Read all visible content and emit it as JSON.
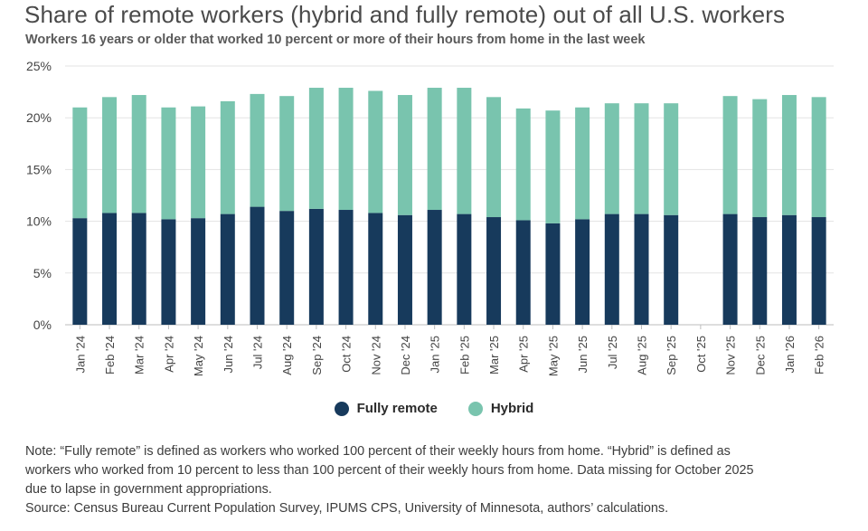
{
  "title": "Share of remote workers (hybrid and fully remote) out of all U.S. workers",
  "subtitle": "Workers 16 years or older that worked 10 percent or more of their hours from home in the last week",
  "legend": {
    "fully_remote": "Fully remote",
    "hybrid": "Hybrid"
  },
  "colors": {
    "fully_remote": "#173a5c",
    "hybrid": "#79c4ae",
    "grid": "#e3e3e3",
    "axis": "#bdbdbd",
    "tick_text": "#444444"
  },
  "note": {
    "line1": "Note: “Fully remote” is defined as workers who worked 100 percent of their weekly hours from home. “Hybrid” is defined as",
    "line2": "workers who worked from 10 percent to less than 100 percent of their weekly hours from home. Data missing for October 2025",
    "line3": "due to lapse in government appropriations.",
    "source": "Source: Census Bureau Current Population Survey, IPUMS CPS, University of Minnesota, authors’ calculations."
  },
  "chart_data": {
    "type": "bar",
    "stacked": true,
    "categories": [
      "Jan '24",
      "Feb '24",
      "Mar '24",
      "Apr '24",
      "May '24",
      "Jun '24",
      "Jul '24",
      "Aug '24",
      "Sep '24",
      "Oct '24",
      "Nov '24",
      "Dec '24",
      "Jan '25",
      "Feb '25",
      "Mar '25",
      "Apr '25",
      "May '25",
      "Jun '25",
      "Jul '25",
      "Aug '25",
      "Sep '25",
      "Oct '25",
      "Nov '25",
      "Dec '25",
      "Jan '26",
      "Feb '26"
    ],
    "series": [
      {
        "name": "Fully remote",
        "values": [
          10.3,
          10.8,
          10.8,
          10.2,
          10.3,
          10.7,
          11.4,
          11.0,
          11.2,
          11.1,
          10.8,
          10.6,
          11.1,
          10.7,
          10.4,
          10.1,
          9.8,
          10.2,
          10.7,
          10.7,
          10.6,
          null,
          10.7,
          10.4,
          10.6,
          10.4
        ]
      },
      {
        "name": "Hybrid",
        "values": [
          10.7,
          11.2,
          11.4,
          10.8,
          10.8,
          10.9,
          10.9,
          11.1,
          11.7,
          11.8,
          11.8,
          11.6,
          11.8,
          12.2,
          11.6,
          10.8,
          10.9,
          10.8,
          10.7,
          10.7,
          10.8,
          null,
          11.4,
          11.4,
          11.6,
          11.6
        ]
      }
    ],
    "y_ticks": [
      "0%",
      "5%",
      "10%",
      "15%",
      "20%",
      "25%"
    ],
    "ylim": [
      0,
      25
    ],
    "y_unit": "%",
    "grid": true,
    "legend_position": "bottom-center"
  }
}
